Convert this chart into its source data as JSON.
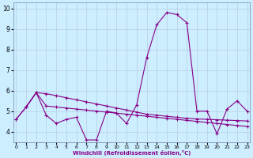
{
  "xlabel": "Windchill (Refroidissement éolien,°C)",
  "background_color": "#cceeff",
  "line_color": "#880088",
  "grid_color": "#b8cce0",
  "x_ticks": [
    0,
    1,
    2,
    3,
    4,
    5,
    6,
    7,
    8,
    9,
    10,
    11,
    12,
    13,
    14,
    15,
    16,
    17,
    18,
    19,
    20,
    21,
    22,
    23
  ],
  "y_ticks": [
    4,
    5,
    6,
    7,
    8,
    9,
    10
  ],
  "xlim": [
    -0.3,
    23.3
  ],
  "ylim": [
    3.5,
    10.3
  ],
  "line1_x": [
    0,
    1,
    2,
    3,
    4,
    5,
    6,
    7,
    8,
    9,
    10,
    11,
    12,
    13,
    14,
    15,
    16,
    17,
    18,
    19,
    20,
    21,
    22,
    23
  ],
  "line1_y": [
    4.6,
    5.2,
    5.9,
    4.8,
    4.4,
    4.6,
    4.7,
    3.6,
    3.6,
    5.0,
    4.9,
    4.4,
    5.3,
    7.6,
    9.2,
    9.8,
    9.7,
    9.3,
    5.0,
    5.0,
    3.9,
    5.1,
    5.5,
    5.0
  ],
  "line2_x": [
    0,
    1,
    2,
    3,
    4,
    5,
    6,
    7,
    8,
    9,
    10,
    11,
    12,
    13,
    14,
    15,
    16,
    17,
    18,
    19,
    20,
    21,
    22,
    23
  ],
  "line2_y": [
    4.6,
    5.2,
    5.9,
    5.85,
    5.75,
    5.65,
    5.55,
    5.45,
    5.35,
    5.25,
    5.15,
    5.05,
    4.95,
    4.85,
    4.8,
    4.75,
    4.7,
    4.65,
    4.62,
    4.6,
    4.58,
    4.56,
    4.54,
    4.52
  ],
  "line3_x": [
    1,
    2,
    3,
    4,
    5,
    6,
    7,
    8,
    9,
    10,
    11,
    12,
    13,
    14,
    15,
    16,
    17,
    18,
    19,
    20,
    21,
    22,
    23
  ],
  "line3_y": [
    5.2,
    5.9,
    5.25,
    5.2,
    5.15,
    5.1,
    5.05,
    5.0,
    4.95,
    4.9,
    4.85,
    4.8,
    4.75,
    4.7,
    4.65,
    4.6,
    4.55,
    4.5,
    4.45,
    4.4,
    4.35,
    4.3,
    4.25
  ]
}
